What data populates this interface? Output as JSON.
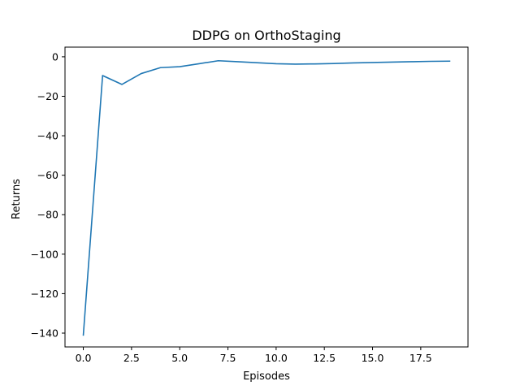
{
  "chart_data": {
    "type": "line",
    "title": "DDPG on OrthoStaging",
    "xlabel": "Episodes",
    "ylabel": "Returns",
    "xlim": [
      -0.95,
      19.95
    ],
    "ylim": [
      -147.0,
      4.9
    ],
    "xticks": [
      0.0,
      2.5,
      5.0,
      7.5,
      10.0,
      12.5,
      15.0,
      17.5
    ],
    "xtick_labels": [
      "0.0",
      "2.5",
      "5.0",
      "7.5",
      "10.0",
      "12.5",
      "15.0",
      "17.5"
    ],
    "yticks": [
      0,
      -20,
      -40,
      -60,
      -80,
      -100,
      -120,
      -140
    ],
    "ytick_labels": [
      "0",
      "−20",
      "−40",
      "−60",
      "−80",
      "−100",
      "−120",
      "−140"
    ],
    "grid": false,
    "series": [
      {
        "color": "#1f77b4",
        "x": [
          0,
          1,
          2,
          3,
          4,
          5,
          6,
          7,
          8,
          9,
          10,
          11,
          12,
          13,
          14,
          15,
          16,
          17,
          18,
          19
        ],
        "y": [
          -141,
          -9.5,
          -14,
          -8.5,
          -5.5,
          -5,
          -3.5,
          -2,
          -2.5,
          -3,
          -3.5,
          -3.7,
          -3.6,
          -3.4,
          -3.1,
          -2.9,
          -2.7,
          -2.5,
          -2.3,
          -2.2
        ]
      }
    ]
  }
}
